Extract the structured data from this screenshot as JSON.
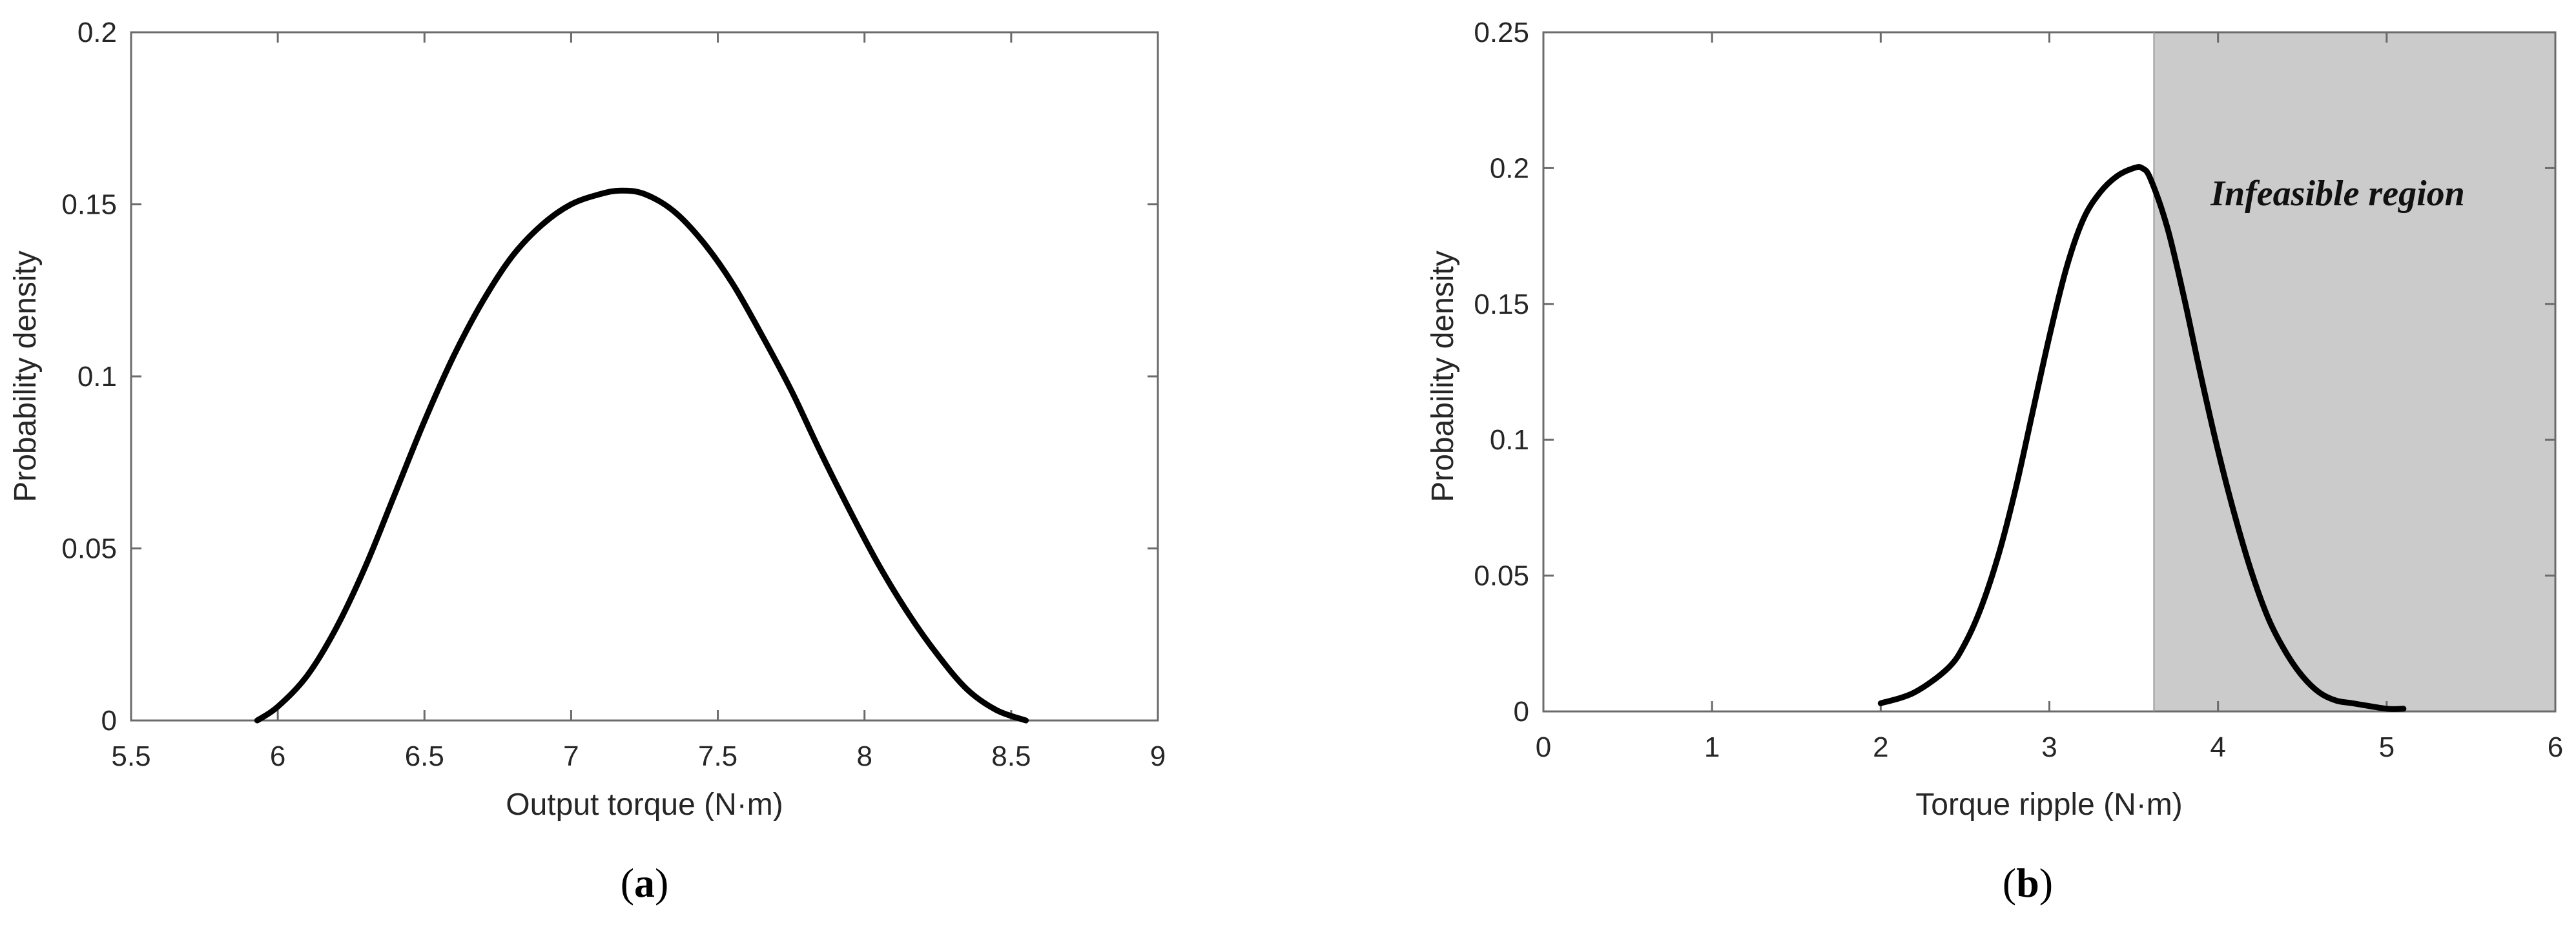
{
  "chart_data": [
    {
      "type": "line",
      "panel_label": "a",
      "xlabel": "Output torque (N·m)",
      "ylabel": "Probability density",
      "xlim": [
        5.5,
        9
      ],
      "ylim": [
        0,
        0.2
      ],
      "xticks": [
        "5.5",
        "6",
        "6.5",
        "7",
        "7.5",
        "8",
        "8.5",
        "9"
      ],
      "yticks": [
        "0",
        "0.05",
        "0.1",
        "0.15",
        "0.2"
      ],
      "grid": false,
      "series": [
        {
          "x": [
            5.93,
            6.0,
            6.1,
            6.2,
            6.3,
            6.4,
            6.5,
            6.6,
            6.7,
            6.8,
            6.9,
            7.0,
            7.1,
            7.17,
            7.25,
            7.35,
            7.45,
            7.55,
            7.65,
            7.75,
            7.85,
            7.95,
            8.05,
            8.15,
            8.25,
            8.35,
            8.45,
            8.55
          ],
          "y": [
            0.0,
            0.004,
            0.013,
            0.027,
            0.045,
            0.066,
            0.087,
            0.106,
            0.122,
            0.135,
            0.144,
            0.15,
            0.153,
            0.154,
            0.153,
            0.148,
            0.139,
            0.127,
            0.112,
            0.096,
            0.078,
            0.061,
            0.045,
            0.031,
            0.019,
            0.009,
            0.003,
            0.0
          ]
        }
      ]
    },
    {
      "type": "line",
      "panel_label": "b",
      "xlabel": "Torque ripple (N·m)",
      "ylabel": "Probability density",
      "xlim": [
        0,
        6
      ],
      "ylim": [
        0,
        0.25
      ],
      "xticks": [
        "0",
        "1",
        "2",
        "3",
        "4",
        "5",
        "6"
      ],
      "yticks": [
        "0",
        "0.05",
        "0.1",
        "0.15",
        "0.2",
        "0.25"
      ],
      "grid": false,
      "shaded_region": {
        "x_from": 3.62,
        "x_to": 6,
        "label": "Infeasible region",
        "color": "#cbcbcb"
      },
      "series": [
        {
          "x": [
            2.0,
            2.2,
            2.4,
            2.5,
            2.6,
            2.7,
            2.8,
            2.9,
            3.0,
            3.1,
            3.2,
            3.3,
            3.4,
            3.5,
            3.55,
            3.6,
            3.7,
            3.8,
            3.9,
            4.0,
            4.1,
            4.2,
            4.3,
            4.4,
            4.5,
            4.6,
            4.7,
            4.8,
            5.0,
            5.1
          ],
          "y": [
            0.003,
            0.007,
            0.016,
            0.025,
            0.039,
            0.058,
            0.082,
            0.11,
            0.138,
            0.163,
            0.181,
            0.191,
            0.197,
            0.2,
            0.2,
            0.196,
            0.178,
            0.152,
            0.123,
            0.096,
            0.072,
            0.051,
            0.034,
            0.022,
            0.013,
            0.007,
            0.004,
            0.003,
            0.001,
            0.001
          ]
        }
      ]
    }
  ]
}
